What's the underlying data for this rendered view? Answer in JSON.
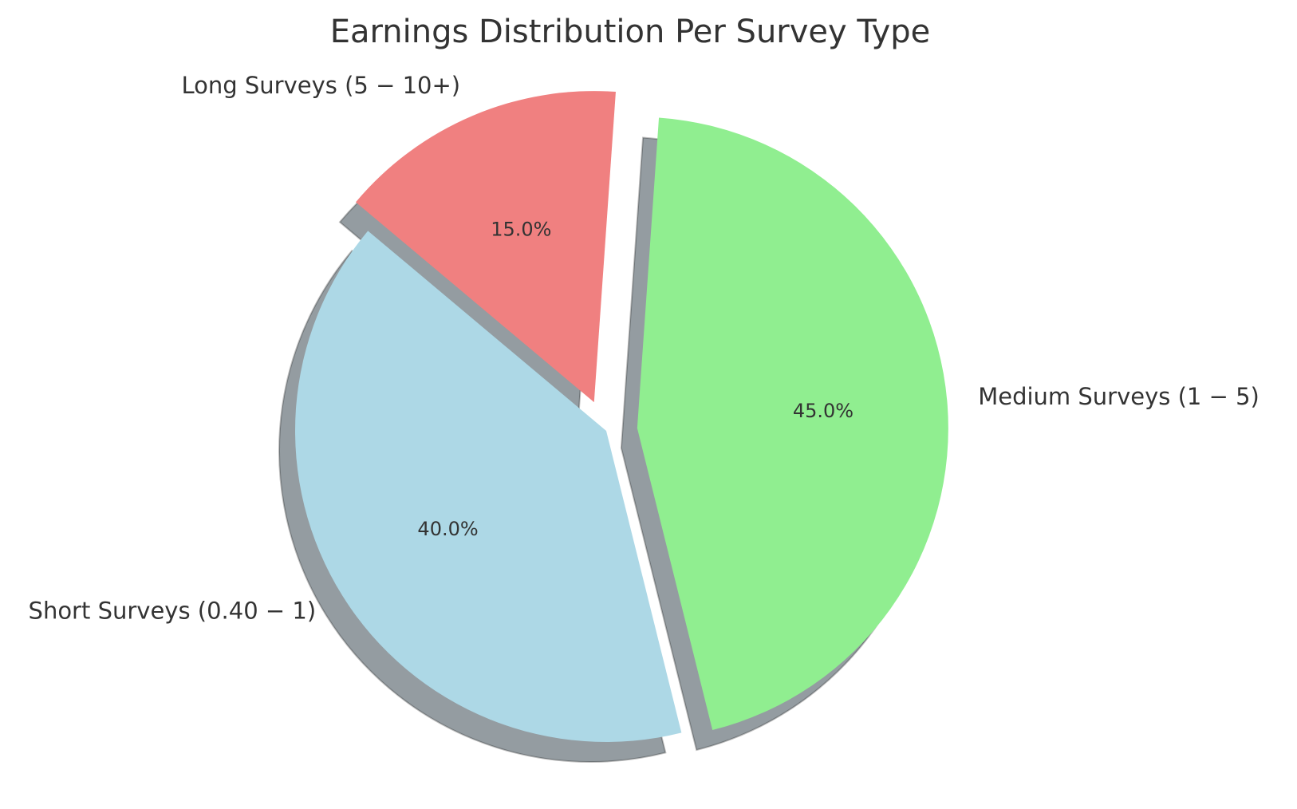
{
  "chart_data": {
    "type": "pie",
    "title": "Earnings Distribution Per Survey Type",
    "categories": [
      "Short Surveys (0.40 − 1)",
      "Medium Surveys (1 − 5)",
      "Long Surveys (5 − 10+)"
    ],
    "values": [
      40.0,
      45.0,
      15.0
    ],
    "percent_labels": [
      "40.0%",
      "45.0%",
      "15.0%"
    ],
    "colors": [
      "#add8e6",
      "#90ee90",
      "#f08080"
    ],
    "explode": [
      0,
      0.1,
      0.1
    ],
    "start_angle": 140,
    "shadow": true,
    "legend": "none"
  }
}
